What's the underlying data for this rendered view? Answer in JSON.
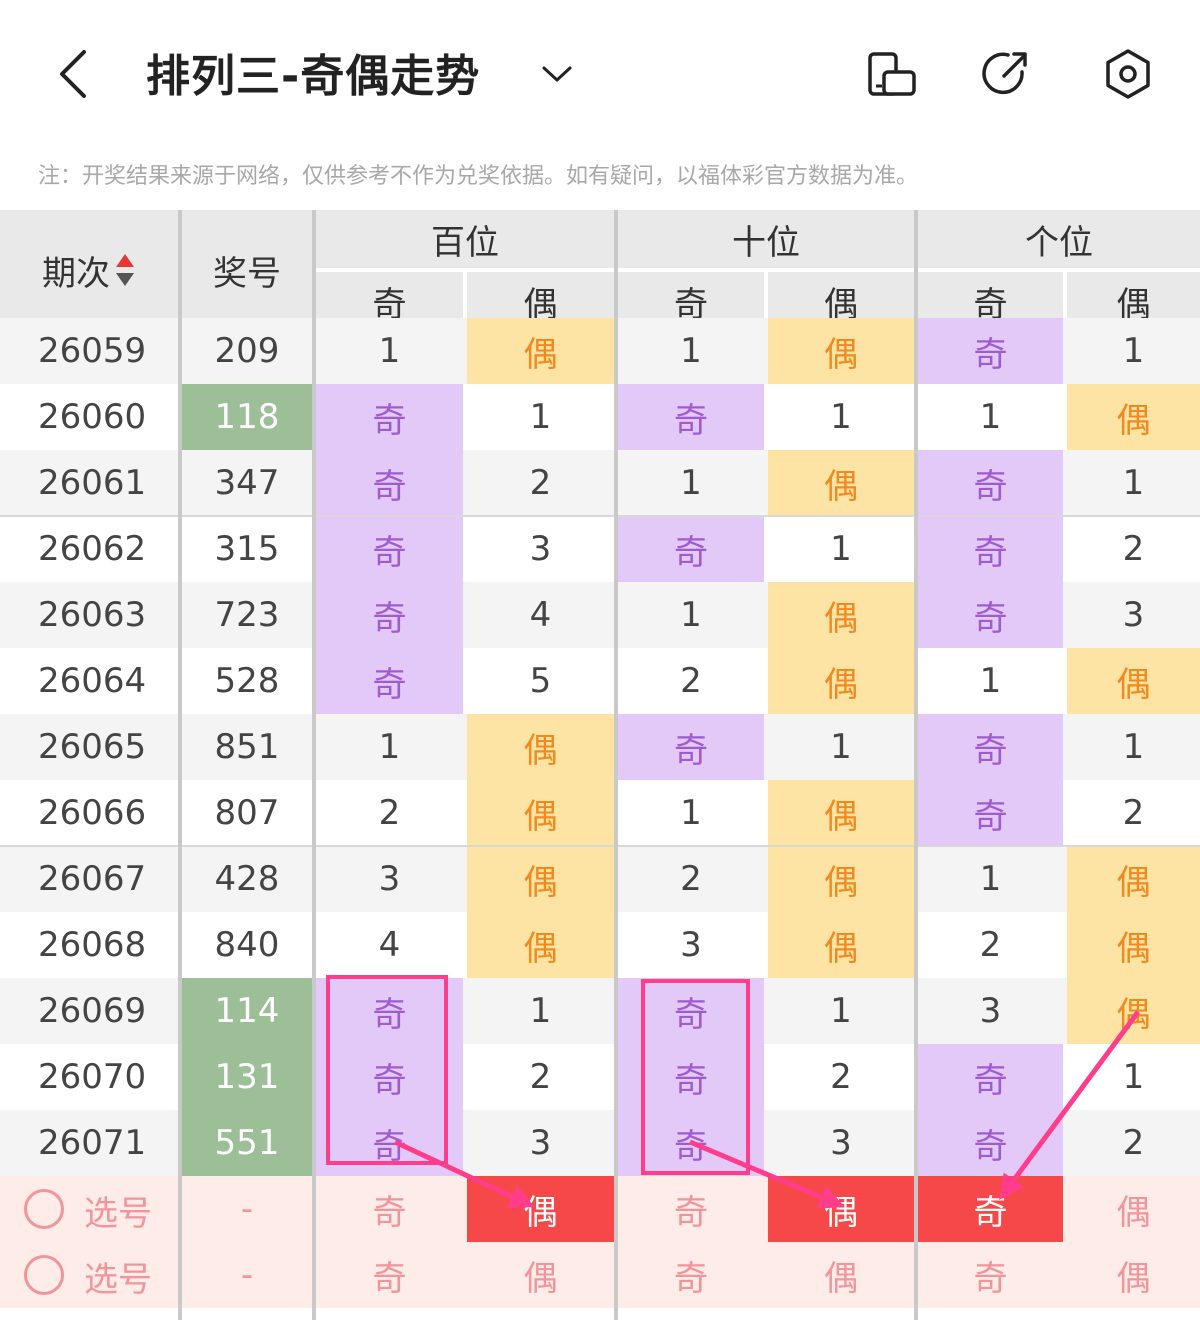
{
  "header": {
    "back_icon": "chevron-left-icon",
    "title": "排列三-奇偶走势",
    "dropdown_icon": "chevron-down-icon",
    "icons": [
      "phone-rotate-icon",
      "share-icon",
      "settings-hexagon-icon"
    ]
  },
  "note": "注：开奖结果来源于网络，仅供参考不作为兑奖依据。如有疑问，以福体彩官方数据为准。",
  "table": {
    "headers": {
      "issue": "期次",
      "number": "奖号",
      "groups": [
        "百位",
        "十位",
        "个位"
      ],
      "odd": "奇",
      "even": "偶"
    },
    "rows": [
      {
        "issue": "26059",
        "num": "209",
        "hl": false,
        "b": [
          "1",
          "偶"
        ],
        "s": [
          "1",
          "偶"
        ],
        "g": [
          "奇",
          "1"
        ]
      },
      {
        "issue": "26060",
        "num": "118",
        "hl": true,
        "b": [
          "奇",
          "1"
        ],
        "s": [
          "奇",
          "1"
        ],
        "g": [
          "1",
          "偶"
        ]
      },
      {
        "issue": "26061",
        "num": "347",
        "hl": false,
        "b": [
          "奇",
          "2"
        ],
        "s": [
          "1",
          "偶"
        ],
        "g": [
          "奇",
          "1"
        ]
      },
      {
        "issue": "26062",
        "num": "315",
        "hl": false,
        "b": [
          "奇",
          "3"
        ],
        "s": [
          "奇",
          "1"
        ],
        "g": [
          "奇",
          "2"
        ]
      },
      {
        "issue": "26063",
        "num": "723",
        "hl": false,
        "b": [
          "奇",
          "4"
        ],
        "s": [
          "1",
          "偶"
        ],
        "g": [
          "奇",
          "3"
        ]
      },
      {
        "issue": "26064",
        "num": "528",
        "hl": false,
        "b": [
          "奇",
          "5"
        ],
        "s": [
          "2",
          "偶"
        ],
        "g": [
          "1",
          "偶"
        ]
      },
      {
        "issue": "26065",
        "num": "851",
        "hl": false,
        "b": [
          "1",
          "偶"
        ],
        "s": [
          "奇",
          "1"
        ],
        "g": [
          "奇",
          "1"
        ]
      },
      {
        "issue": "26066",
        "num": "807",
        "hl": false,
        "b": [
          "2",
          "偶"
        ],
        "s": [
          "1",
          "偶"
        ],
        "g": [
          "奇",
          "2"
        ]
      },
      {
        "issue": "26067",
        "num": "428",
        "hl": false,
        "b": [
          "3",
          "偶"
        ],
        "s": [
          "2",
          "偶"
        ],
        "g": [
          "1",
          "偶"
        ]
      },
      {
        "issue": "26068",
        "num": "840",
        "hl": false,
        "b": [
          "4",
          "偶"
        ],
        "s": [
          "3",
          "偶"
        ],
        "g": [
          "2",
          "偶"
        ]
      },
      {
        "issue": "26069",
        "num": "114",
        "hl": true,
        "b": [
          "奇",
          "1"
        ],
        "s": [
          "奇",
          "1"
        ],
        "g": [
          "3",
          "偶"
        ]
      },
      {
        "issue": "26070",
        "num": "131",
        "hl": true,
        "b": [
          "奇",
          "2"
        ],
        "s": [
          "奇",
          "2"
        ],
        "g": [
          "奇",
          "1"
        ]
      },
      {
        "issue": "26071",
        "num": "551",
        "hl": true,
        "b": [
          "奇",
          "3"
        ],
        "s": [
          "奇",
          "3"
        ],
        "g": [
          "奇",
          "2"
        ]
      }
    ],
    "select_rows": [
      {
        "label": "选号",
        "num": "-",
        "cells": [
          "奇",
          "偶",
          "奇",
          "偶",
          "奇",
          "偶"
        ],
        "picked": [
          false,
          true,
          false,
          true,
          true,
          false
        ]
      },
      {
        "label": "选号",
        "num": "-",
        "cells": [
          "奇",
          "偶",
          "奇",
          "偶",
          "奇",
          "偶"
        ],
        "picked": [
          false,
          false,
          false,
          false,
          false,
          false
        ]
      }
    ]
  },
  "colors": {
    "odd_bg": "#e2c9f8",
    "odd_text": "#a05bd1",
    "even_bg": "#fde4a5",
    "even_text": "#f08a1e",
    "number_highlight": "#9cbf97",
    "pick_red": "#f64848",
    "annotation_pink": "#ff3d8b"
  }
}
